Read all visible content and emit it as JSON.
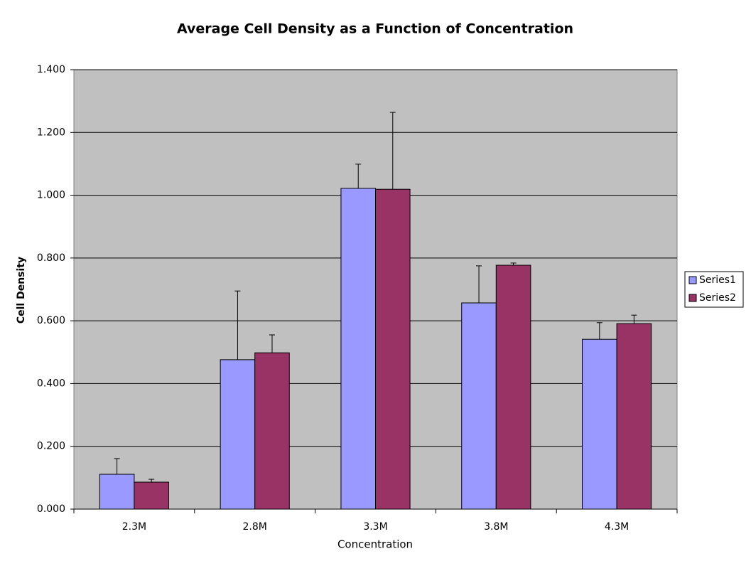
{
  "chart_data": {
    "type": "bar",
    "title": "Average Cell Density as a Function of Concentration",
    "x_label": "Concentration",
    "y_label": "Cell Density",
    "categories": [
      "2.3M",
      "2.8M",
      "3.3M",
      "3.8M",
      "4.3M"
    ],
    "series": [
      {
        "name": "Series1",
        "color": "#9999ff",
        "values": [
          0.111,
          0.476,
          1.022,
          0.657,
          0.541
        ],
        "errors": [
          0.05,
          0.219,
          0.077,
          0.118,
          0.053
        ]
      },
      {
        "name": "Series2",
        "color": "#993366",
        "values": [
          0.086,
          0.498,
          1.019,
          0.777,
          0.591
        ],
        "errors": [
          0.009,
          0.057,
          0.245,
          0.007,
          0.027
        ]
      }
    ],
    "ylim": [
      0,
      1.4
    ],
    "yticks": [
      {
        "value": 0,
        "label": "0.000"
      },
      {
        "value": 0.2,
        "label": "0.200"
      },
      {
        "value": 0.4,
        "label": "0.400"
      },
      {
        "value": 0.6,
        "label": "0.600"
      },
      {
        "value": 0.8,
        "label": "0.800"
      },
      {
        "value": 1.0,
        "label": "1.000"
      },
      {
        "value": 1.2,
        "label": "1.200"
      },
      {
        "value": 1.4,
        "label": "1.400"
      }
    ],
    "grid": true,
    "legend": "right"
  }
}
